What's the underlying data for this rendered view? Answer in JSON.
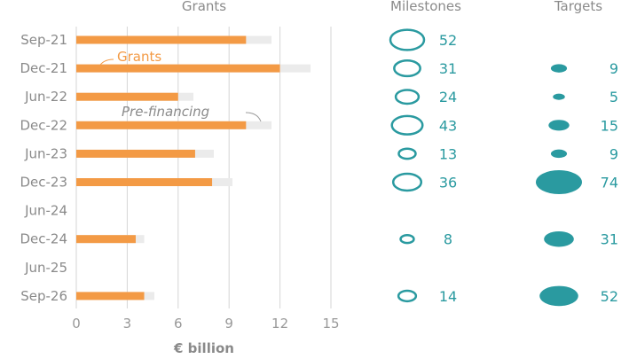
{
  "chart_data": [
    {
      "type": "bar",
      "title": "Grants",
      "xlabel": "€ billion",
      "xlim": [
        0,
        15
      ],
      "xticks": [
        "0",
        "3",
        "6",
        "9",
        "12",
        "15"
      ],
      "grid": true,
      "categories": [
        "Sep-21",
        "Dec-21",
        "Jun-22",
        "Dec-22",
        "Jun-23",
        "Dec-23",
        "Jun-24",
        "Dec-24",
        "Jun-25",
        "Sep-26"
      ],
      "series": [
        {
          "name": "Grants",
          "color": "#f39a45",
          "values": [
            10.0,
            12.0,
            6.0,
            10.0,
            7.0,
            8.0,
            null,
            3.5,
            null,
            4.0
          ]
        },
        {
          "name": "Pre-financing",
          "color": "#ebebeb",
          "values": [
            11.5,
            13.8,
            6.9,
            11.5,
            8.1,
            9.2,
            null,
            4.0,
            null,
            4.6
          ]
        }
      ],
      "annotations": [
        "Grants",
        "Pre-financing"
      ]
    },
    {
      "type": "bubble",
      "title": "Milestones",
      "style": "outline",
      "color": "#2a9aa0",
      "categories": [
        "Sep-21",
        "Dec-21",
        "Jun-22",
        "Dec-22",
        "Jun-23",
        "Dec-23",
        "Jun-24",
        "Dec-24",
        "Jun-25",
        "Sep-26"
      ],
      "values": [
        52,
        31,
        24,
        43,
        13,
        36,
        null,
        8,
        null,
        14
      ]
    },
    {
      "type": "bubble",
      "title": "Targets",
      "style": "filled",
      "color": "#2a9aa0",
      "categories": [
        "Sep-21",
        "Dec-21",
        "Jun-22",
        "Dec-22",
        "Jun-23",
        "Dec-23",
        "Jun-24",
        "Dec-24",
        "Jun-25",
        "Sep-26"
      ],
      "values": [
        null,
        9,
        5,
        15,
        9,
        74,
        null,
        31,
        null,
        52
      ]
    }
  ]
}
